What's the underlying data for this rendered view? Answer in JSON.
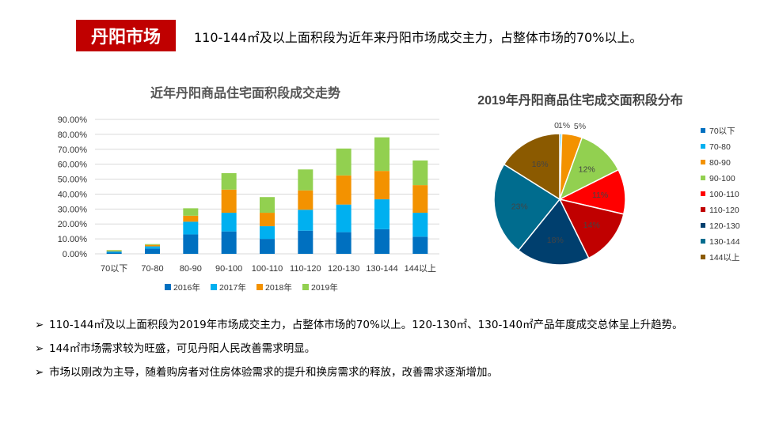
{
  "header": {
    "badge": "丹阳市场",
    "headline": "110-144㎡及以上面积段为近年来丹阳市场成交主力，占整体市场的70%以上。"
  },
  "bullets": [
    {
      "marker": "➢",
      "text": "110-144㎡及以上面积段为2019年市场成交主力，占整体市场的70%以上。120-130㎡、130-140㎡产品年度成交总体呈上升趋势。"
    },
    {
      "marker": "➢",
      "text": "144㎡市场需求较为旺盛，可见丹阳人民改善需求明显。"
    },
    {
      "marker": "➢",
      "text": "市场以刚改为主导，随着购房者对住房体验需求的提升和换房需求的释放，改善需求逐渐增加。"
    }
  ],
  "chart_data": [
    {
      "type": "bar",
      "stacked": true,
      "title": "近年丹阳商品住宅面积段成交走势",
      "categories": [
        "70以下",
        "70-80",
        "80-90",
        "90-100",
        "100-110",
        "110-120",
        "120-130",
        "130-144",
        "144以上"
      ],
      "series": [
        {
          "name": "2016年",
          "color": "#0070c0",
          "values": [
            0.8,
            3.5,
            13,
            15,
            10,
            15.5,
            14.5,
            16.5,
            11.5
          ]
        },
        {
          "name": "2017年",
          "color": "#00b0f0",
          "values": [
            0.8,
            1.5,
            8.5,
            12.5,
            8.5,
            14,
            18.5,
            20,
            16
          ]
        },
        {
          "name": "2018年",
          "color": "#f39200",
          "values": [
            0.4,
            1,
            4,
            15.5,
            9,
            13,
            19.5,
            19,
            18.5
          ]
        },
        {
          "name": "2019年",
          "color": "#92d050",
          "values": [
            0.5,
            0.5,
            5,
            11,
            10.5,
            14,
            18,
            22.5,
            16.5
          ]
        }
      ],
      "yticks": [
        "0.00%",
        "10.00%",
        "20.00%",
        "30.00%",
        "40.00%",
        "50.00%",
        "60.00%",
        "70.00%",
        "80.00%",
        "90.00%"
      ],
      "ylim": [
        0,
        90
      ],
      "grid": true,
      "legend": "bottom"
    },
    {
      "type": "pie",
      "title": "2019年丹阳商品住宅成交面积段分布",
      "legend": "right",
      "slices": [
        {
          "name": "70以下",
          "value": 0,
          "label": "0",
          "color": "#0070c0"
        },
        {
          "name": "70-80",
          "value": 0.5,
          "label": "1%",
          "color": "#00b0f0"
        },
        {
          "name": "80-90",
          "value": 5,
          "label": "5%",
          "color": "#f39200"
        },
        {
          "name": "90-100",
          "value": 12,
          "label": "12%",
          "color": "#92d050"
        },
        {
          "name": "100-110",
          "value": 11,
          "label": "11%",
          "color": "#ff0000"
        },
        {
          "name": "110-120",
          "value": 14,
          "label": "14%",
          "color": "#c00000"
        },
        {
          "name": "120-130",
          "value": 18,
          "label": "18%",
          "color": "#003f6e"
        },
        {
          "name": "130-144",
          "value": 23,
          "label": "23%",
          "color": "#006c8e"
        },
        {
          "name": "144以上",
          "value": 16,
          "label": "16%",
          "color": "#8b5a00"
        }
      ]
    }
  ]
}
